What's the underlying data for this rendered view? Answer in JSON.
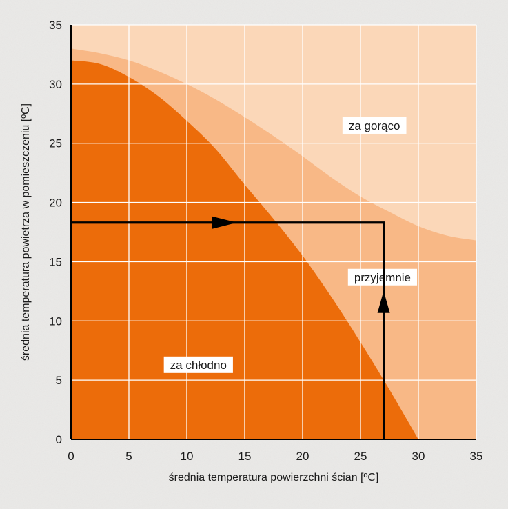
{
  "chart_data": {
    "type": "area",
    "xlabel": "średnia temperatura powierzchni ścian [ºC]",
    "ylabel": "średnia temperatura powietrza w pomieszczeniu [ºC]",
    "xlim": [
      0,
      35
    ],
    "ylim": [
      0,
      35
    ],
    "xticks": [
      0,
      5,
      10,
      15,
      20,
      25,
      30,
      35
    ],
    "yticks": [
      0,
      5,
      10,
      15,
      20,
      25,
      30,
      35
    ],
    "grid": true,
    "colors": {
      "za_goraco": "#fbd7b8",
      "przyjemnie": "#f8b886",
      "za_chlodno": "#ec6c0a",
      "grid": "#ffffff",
      "path": "#000000"
    },
    "boundaries": [
      {
        "name": "upper",
        "x": [
          0,
          2.5,
          5,
          7.5,
          10,
          12.5,
          15,
          17.5,
          20,
          22.5,
          25,
          27.5,
          30,
          32.5,
          35
        ],
        "y": [
          33.0,
          32.6,
          32.0,
          31.1,
          30.0,
          28.7,
          27.2,
          25.6,
          23.9,
          22.1,
          20.5,
          19.2,
          18.0,
          17.2,
          16.8
        ]
      },
      {
        "name": "lower",
        "x": [
          0,
          2.5,
          5,
          7.5,
          10,
          12.5,
          15,
          17.5,
          20,
          22.5,
          25,
          27.5,
          30
        ],
        "y": [
          32.0,
          31.7,
          30.6,
          29.0,
          26.9,
          24.5,
          21.5,
          18.6,
          15.5,
          12.0,
          8.2,
          4.2,
          0.0
        ]
      }
    ],
    "annotations": [
      {
        "text": "za gorąco",
        "x": 26.2,
        "y": 26.5
      },
      {
        "text": "przyjemnie",
        "x": 26.9,
        "y": 13.7
      },
      {
        "text": "za chłodno",
        "x": 11.0,
        "y": 6.3
      }
    ],
    "path": {
      "points": [
        [
          27,
          0
        ],
        [
          27,
          18.3
        ],
        [
          0,
          18.3
        ]
      ],
      "arrows": [
        {
          "at": [
            27,
            11.6
          ],
          "direction": "up"
        },
        {
          "at": [
            13.5,
            18.3
          ],
          "direction": "right"
        }
      ]
    }
  }
}
